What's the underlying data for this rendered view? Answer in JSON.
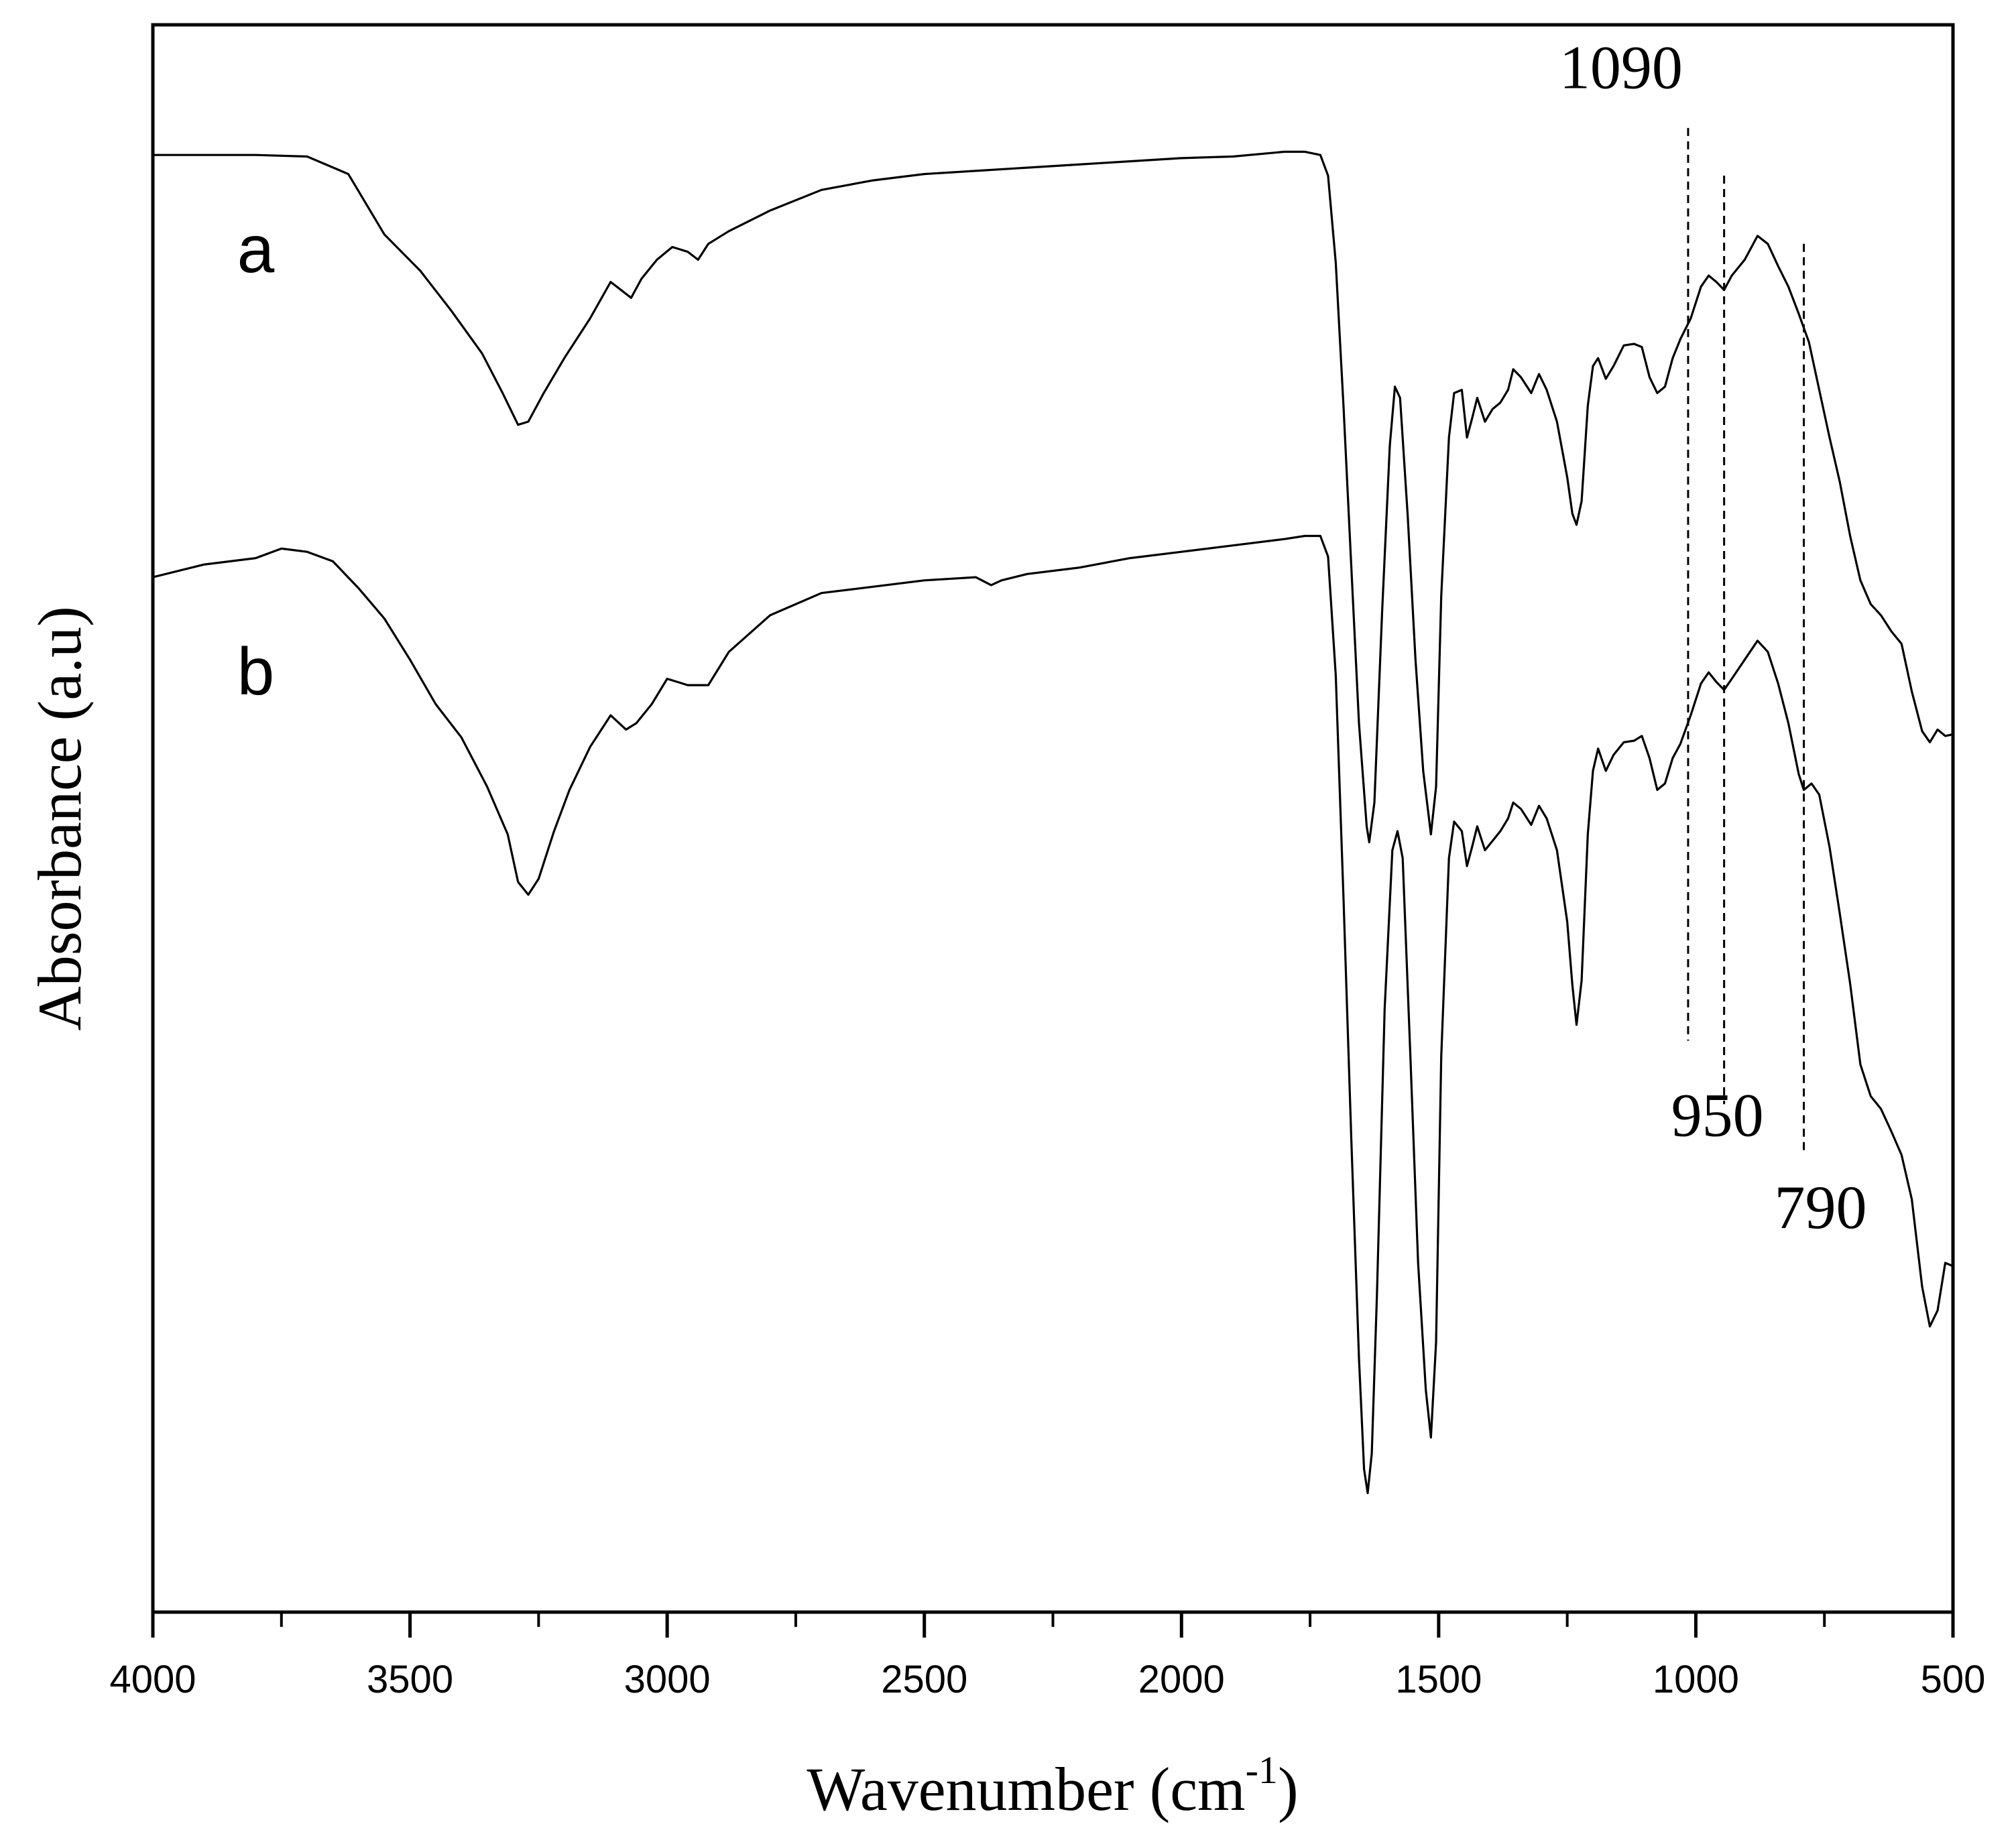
{
  "chart_data": {
    "type": "line",
    "title": "",
    "xlabel": "Wavenumber (cm",
    "xlabel_sup": "-1",
    "xlabel_end": ")",
    "ylabel": "Absorbance (a.u)",
    "xlim": [
      4000,
      500
    ],
    "ylim": [
      0,
      1
    ],
    "x_reversed": true,
    "y_ticks_shown": false,
    "grid": false,
    "x_ticks": [
      4000,
      3500,
      3000,
      2500,
      2000,
      1500,
      1000,
      500
    ],
    "x_tick_labels": [
      "4000",
      "3500",
      "3000",
      "2500",
      "2000",
      "1500",
      "1000",
      "500"
    ],
    "line_color": "#000000",
    "series": [
      {
        "name": "a",
        "points": [
          [
            4000,
            0.918
          ],
          [
            3800,
            0.918
          ],
          [
            3700,
            0.917
          ],
          [
            3620,
            0.906
          ],
          [
            3550,
            0.868
          ],
          [
            3480,
            0.845
          ],
          [
            3420,
            0.82
          ],
          [
            3360,
            0.793
          ],
          [
            3320,
            0.768
          ],
          [
            3290,
            0.748
          ],
          [
            3270,
            0.75
          ],
          [
            3240,
            0.768
          ],
          [
            3200,
            0.79
          ],
          [
            3150,
            0.815
          ],
          [
            3110,
            0.838
          ],
          [
            3070,
            0.828
          ],
          [
            3050,
            0.84
          ],
          [
            3020,
            0.852
          ],
          [
            2990,
            0.86
          ],
          [
            2960,
            0.857
          ],
          [
            2940,
            0.852
          ],
          [
            2920,
            0.862
          ],
          [
            2880,
            0.87
          ],
          [
            2800,
            0.883
          ],
          [
            2700,
            0.896
          ],
          [
            2600,
            0.902
          ],
          [
            2500,
            0.906
          ],
          [
            2400,
            0.908
          ],
          [
            2300,
            0.91
          ],
          [
            2200,
            0.912
          ],
          [
            2100,
            0.914
          ],
          [
            2000,
            0.916
          ],
          [
            1900,
            0.917
          ],
          [
            1800,
            0.92
          ],
          [
            1760,
            0.92
          ],
          [
            1730,
            0.918
          ],
          [
            1715,
            0.905
          ],
          [
            1700,
            0.85
          ],
          [
            1685,
            0.76
          ],
          [
            1670,
            0.66
          ],
          [
            1655,
            0.56
          ],
          [
            1640,
            0.495
          ],
          [
            1635,
            0.485
          ],
          [
            1625,
            0.51
          ],
          [
            1610,
            0.63
          ],
          [
            1595,
            0.735
          ],
          [
            1585,
            0.772
          ],
          [
            1575,
            0.765
          ],
          [
            1560,
            0.69
          ],
          [
            1545,
            0.6
          ],
          [
            1530,
            0.53
          ],
          [
            1515,
            0.49
          ],
          [
            1505,
            0.52
          ],
          [
            1495,
            0.64
          ],
          [
            1480,
            0.74
          ],
          [
            1470,
            0.768
          ],
          [
            1455,
            0.77
          ],
          [
            1445,
            0.74
          ],
          [
            1435,
            0.752
          ],
          [
            1425,
            0.765
          ],
          [
            1410,
            0.75
          ],
          [
            1395,
            0.758
          ],
          [
            1380,
            0.762
          ],
          [
            1365,
            0.77
          ],
          [
            1355,
            0.783
          ],
          [
            1340,
            0.778
          ],
          [
            1320,
            0.768
          ],
          [
            1305,
            0.78
          ],
          [
            1290,
            0.77
          ],
          [
            1270,
            0.75
          ],
          [
            1250,
            0.715
          ],
          [
            1240,
            0.692
          ],
          [
            1232,
            0.685
          ],
          [
            1222,
            0.7
          ],
          [
            1210,
            0.76
          ],
          [
            1200,
            0.785
          ],
          [
            1190,
            0.79
          ],
          [
            1175,
            0.777
          ],
          [
            1160,
            0.785
          ],
          [
            1140,
            0.798
          ],
          [
            1120,
            0.799
          ],
          [
            1105,
            0.797
          ],
          [
            1090,
            0.778
          ],
          [
            1075,
            0.768
          ],
          [
            1060,
            0.772
          ],
          [
            1045,
            0.79
          ],
          [
            1030,
            0.802
          ],
          [
            1010,
            0.815
          ],
          [
            990,
            0.835
          ],
          [
            975,
            0.842
          ],
          [
            960,
            0.838
          ],
          [
            945,
            0.833
          ],
          [
            930,
            0.842
          ],
          [
            905,
            0.852
          ],
          [
            880,
            0.867
          ],
          [
            860,
            0.862
          ],
          [
            840,
            0.848
          ],
          [
            820,
            0.835
          ],
          [
            800,
            0.818
          ],
          [
            780,
            0.8
          ],
          [
            760,
            0.77
          ],
          [
            740,
            0.74
          ],
          [
            720,
            0.712
          ],
          [
            700,
            0.678
          ],
          [
            680,
            0.65
          ],
          [
            660,
            0.635
          ],
          [
            640,
            0.628
          ],
          [
            620,
            0.618
          ],
          [
            600,
            0.61
          ],
          [
            580,
            0.58
          ],
          [
            560,
            0.555
          ],
          [
            545,
            0.548
          ],
          [
            530,
            0.556
          ],
          [
            515,
            0.552
          ],
          [
            500,
            0.553
          ]
        ]
      },
      {
        "name": "b",
        "points": [
          [
            4000,
            0.652
          ],
          [
            3900,
            0.66
          ],
          [
            3800,
            0.664
          ],
          [
            3750,
            0.67
          ],
          [
            3700,
            0.668
          ],
          [
            3650,
            0.662
          ],
          [
            3600,
            0.645
          ],
          [
            3550,
            0.626
          ],
          [
            3500,
            0.6
          ],
          [
            3450,
            0.572
          ],
          [
            3400,
            0.551
          ],
          [
            3350,
            0.52
          ],
          [
            3310,
            0.49
          ],
          [
            3290,
            0.46
          ],
          [
            3270,
            0.452
          ],
          [
            3250,
            0.462
          ],
          [
            3220,
            0.492
          ],
          [
            3190,
            0.518
          ],
          [
            3150,
            0.545
          ],
          [
            3110,
            0.565
          ],
          [
            3080,
            0.556
          ],
          [
            3060,
            0.56
          ],
          [
            3030,
            0.572
          ],
          [
            3000,
            0.588
          ],
          [
            2960,
            0.584
          ],
          [
            2940,
            0.584
          ],
          [
            2920,
            0.584
          ],
          [
            2880,
            0.605
          ],
          [
            2800,
            0.628
          ],
          [
            2700,
            0.642
          ],
          [
            2600,
            0.646
          ],
          [
            2500,
            0.65
          ],
          [
            2400,
            0.652
          ],
          [
            2370,
            0.647
          ],
          [
            2350,
            0.65
          ],
          [
            2300,
            0.654
          ],
          [
            2200,
            0.658
          ],
          [
            2100,
            0.664
          ],
          [
            2000,
            0.668
          ],
          [
            1900,
            0.672
          ],
          [
            1800,
            0.676
          ],
          [
            1760,
            0.678
          ],
          [
            1730,
            0.678
          ],
          [
            1715,
            0.665
          ],
          [
            1700,
            0.59
          ],
          [
            1685,
            0.45
          ],
          [
            1670,
            0.3
          ],
          [
            1655,
            0.16
          ],
          [
            1645,
            0.09
          ],
          [
            1638,
            0.075
          ],
          [
            1630,
            0.1
          ],
          [
            1620,
            0.2
          ],
          [
            1605,
            0.38
          ],
          [
            1590,
            0.48
          ],
          [
            1580,
            0.492
          ],
          [
            1570,
            0.475
          ],
          [
            1555,
            0.35
          ],
          [
            1540,
            0.22
          ],
          [
            1525,
            0.14
          ],
          [
            1515,
            0.11
          ],
          [
            1505,
            0.17
          ],
          [
            1495,
            0.35
          ],
          [
            1480,
            0.475
          ],
          [
            1470,
            0.498
          ],
          [
            1455,
            0.492
          ],
          [
            1445,
            0.47
          ],
          [
            1435,
            0.482
          ],
          [
            1425,
            0.495
          ],
          [
            1410,
            0.48
          ],
          [
            1395,
            0.486
          ],
          [
            1380,
            0.492
          ],
          [
            1365,
            0.5
          ],
          [
            1355,
            0.51
          ],
          [
            1340,
            0.506
          ],
          [
            1320,
            0.496
          ],
          [
            1305,
            0.508
          ],
          [
            1290,
            0.5
          ],
          [
            1270,
            0.48
          ],
          [
            1250,
            0.435
          ],
          [
            1240,
            0.395
          ],
          [
            1232,
            0.37
          ],
          [
            1222,
            0.398
          ],
          [
            1210,
            0.49
          ],
          [
            1200,
            0.53
          ],
          [
            1190,
            0.544
          ],
          [
            1175,
            0.53
          ],
          [
            1160,
            0.54
          ],
          [
            1140,
            0.548
          ],
          [
            1120,
            0.549
          ],
          [
            1105,
            0.552
          ],
          [
            1090,
            0.538
          ],
          [
            1075,
            0.518
          ],
          [
            1060,
            0.522
          ],
          [
            1045,
            0.538
          ],
          [
            1030,
            0.547
          ],
          [
            1010,
            0.565
          ],
          [
            990,
            0.585
          ],
          [
            975,
            0.592
          ],
          [
            960,
            0.586
          ],
          [
            945,
            0.581
          ],
          [
            930,
            0.588
          ],
          [
            905,
            0.6
          ],
          [
            880,
            0.612
          ],
          [
            860,
            0.605
          ],
          [
            840,
            0.585
          ],
          [
            820,
            0.56
          ],
          [
            800,
            0.528
          ],
          [
            790,
            0.518
          ],
          [
            775,
            0.522
          ],
          [
            760,
            0.515
          ],
          [
            740,
            0.482
          ],
          [
            720,
            0.44
          ],
          [
            700,
            0.396
          ],
          [
            680,
            0.345
          ],
          [
            660,
            0.325
          ],
          [
            640,
            0.317
          ],
          [
            620,
            0.303
          ],
          [
            600,
            0.288
          ],
          [
            580,
            0.26
          ],
          [
            560,
            0.205
          ],
          [
            545,
            0.18
          ],
          [
            530,
            0.19
          ],
          [
            515,
            0.22
          ],
          [
            500,
            0.218
          ]
        ]
      }
    ],
    "annotations": [
      {
        "label": "1090",
        "x": 1015,
        "y_from": 0.36,
        "y_to": 0.935,
        "label_y": 0.96
      },
      {
        "label": "950",
        "x": 945,
        "y_from": 0.32,
        "y_to": 0.905,
        "label_y": 0.3
      },
      {
        "label": "790",
        "x": 790,
        "y_from": 0.29,
        "y_to": 0.862,
        "label_y": 0.242
      }
    ]
  }
}
